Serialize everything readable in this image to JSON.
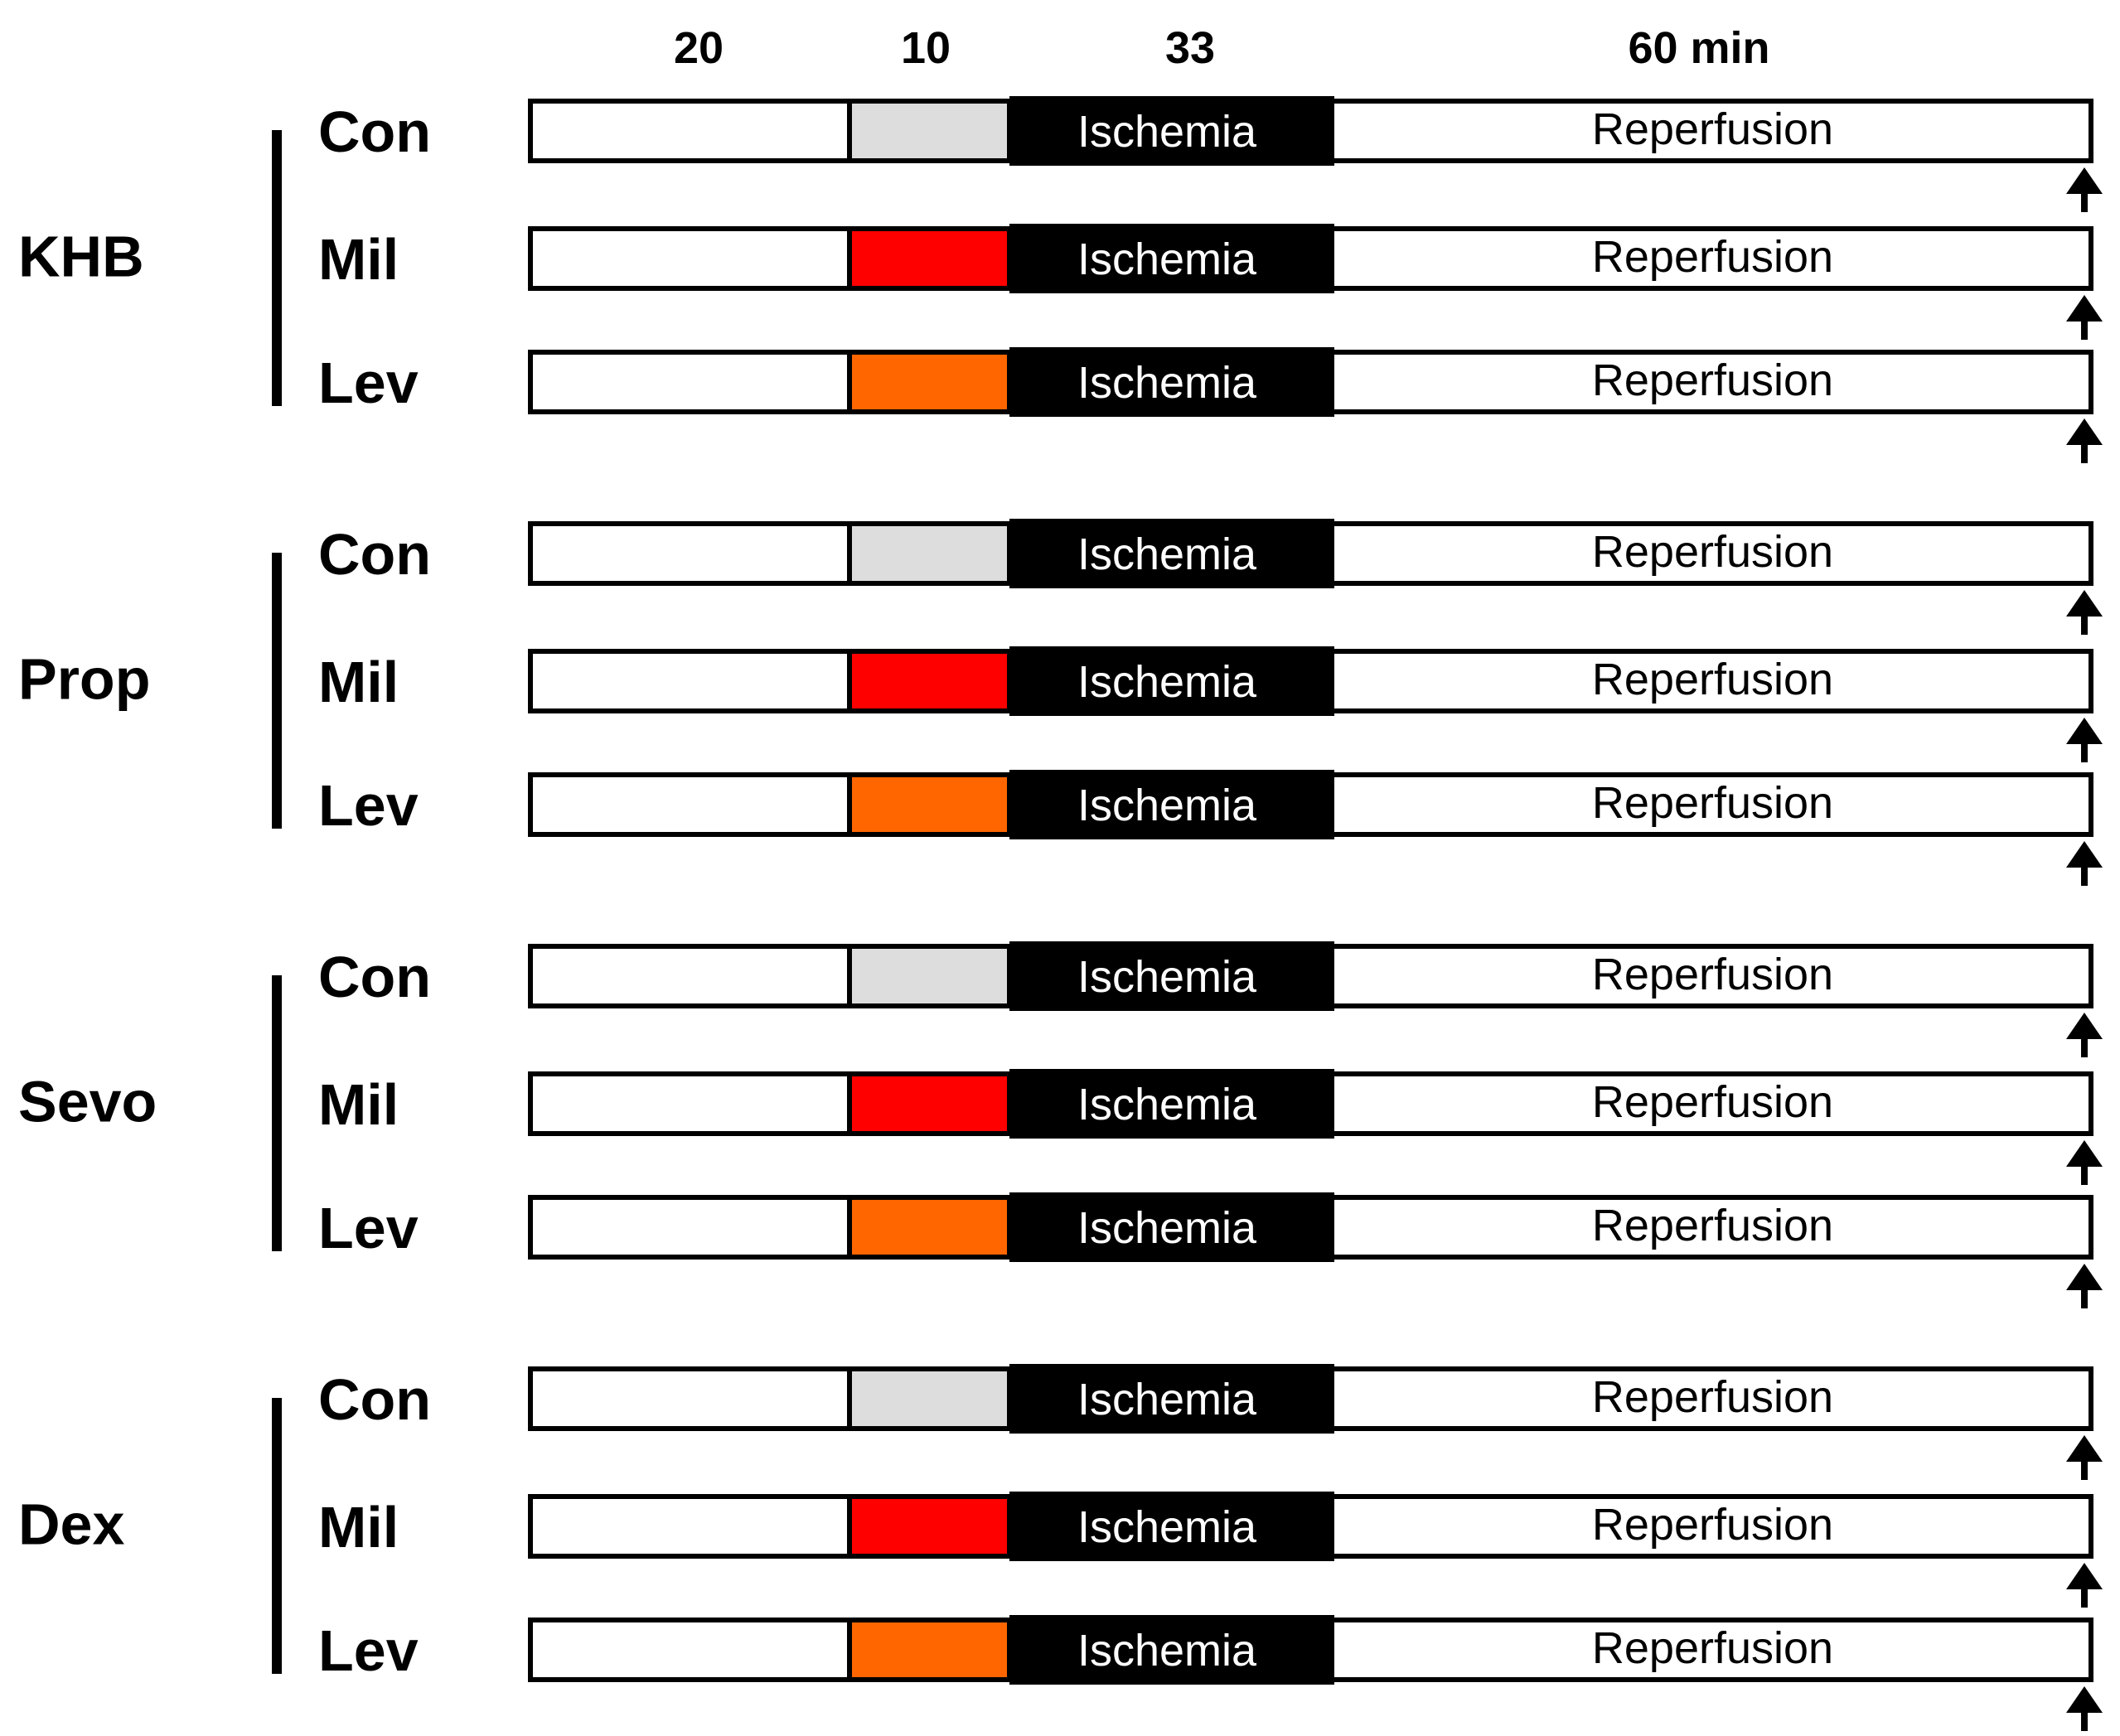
{
  "header": {
    "labels": [
      "20",
      "10",
      "33",
      "60 min"
    ]
  },
  "phases": {
    "ischemia": "Ischemia",
    "reperfusion": "Reperfusion"
  },
  "colors": {
    "Con": "#dddddd",
    "Mil": "#ff0000",
    "Lev": "#ff6600",
    "ischemia_fill": "#000000",
    "outline": "#000000"
  },
  "groups": [
    {
      "name": "KHB",
      "rows": [
        "Con",
        "Mil",
        "Lev"
      ]
    },
    {
      "name": "Prop",
      "rows": [
        "Con",
        "Mil",
        "Lev"
      ]
    },
    {
      "name": "Sevo",
      "rows": [
        "Con",
        "Mil",
        "Lev"
      ]
    },
    {
      "name": "Dex",
      "rows": [
        "Con",
        "Mil",
        "Lev"
      ]
    }
  ]
}
